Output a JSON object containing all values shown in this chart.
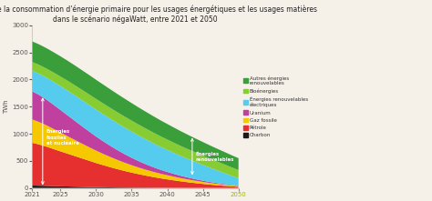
{
  "title": "Évaluation de la consommation d'énergie primaire pour les usages énergétiques et les usages matières\ndans le scénario négaWatt, entre 2021 et 2050",
  "ylabel": "TWh",
  "years": [
    2021,
    2022,
    2023,
    2024,
    2025,
    2026,
    2027,
    2028,
    2029,
    2030,
    2031,
    2032,
    2033,
    2034,
    2035,
    2036,
    2037,
    2038,
    2039,
    2040,
    2041,
    2042,
    2043,
    2044,
    2045,
    2046,
    2047,
    2048,
    2049,
    2050
  ],
  "charbon": [
    45,
    42,
    38,
    34,
    30,
    27,
    24,
    21,
    18,
    15,
    13,
    11,
    9,
    8,
    7,
    6,
    5,
    4,
    3,
    3,
    2,
    2,
    1,
    1,
    1,
    1,
    0,
    0,
    0,
    0
  ],
  "petrole": [
    790,
    760,
    725,
    685,
    645,
    605,
    565,
    525,
    485,
    445,
    408,
    372,
    338,
    306,
    276,
    248,
    222,
    198,
    176,
    156,
    137,
    119,
    103,
    88,
    74,
    61,
    50,
    40,
    30,
    22
  ],
  "gaz_fossile": [
    430,
    415,
    395,
    372,
    348,
    323,
    298,
    274,
    251,
    229,
    208,
    188,
    170,
    153,
    137,
    122,
    109,
    97,
    86,
    76,
    67,
    58,
    51,
    44,
    37,
    31,
    26,
    21,
    16,
    12
  ],
  "uranium": [
    520,
    500,
    475,
    447,
    416,
    385,
    353,
    321,
    290,
    260,
    232,
    206,
    181,
    158,
    137,
    118,
    101,
    86,
    73,
    61,
    51,
    42,
    35,
    28,
    23,
    18,
    14,
    11,
    8,
    5
  ],
  "enr_elec": [
    380,
    390,
    405,
    422,
    440,
    456,
    470,
    481,
    490,
    496,
    499,
    499,
    496,
    491,
    483,
    472,
    459,
    443,
    425,
    406,
    385,
    363,
    340,
    316,
    290,
    263,
    234,
    204,
    172,
    140
  ],
  "bioenergies": [
    160,
    163,
    167,
    172,
    177,
    182,
    186,
    190,
    194,
    197,
    199,
    201,
    202,
    202,
    202,
    201,
    199,
    197,
    194,
    191,
    188,
    184,
    180,
    176,
    172,
    168,
    164,
    160,
    156,
    152
  ],
  "autres_enr": [
    380,
    378,
    376,
    374,
    372,
    369,
    366,
    362,
    358,
    353,
    348,
    342,
    336,
    330,
    323,
    316,
    309,
    302,
    294,
    287,
    279,
    272,
    264,
    257,
    250,
    243,
    236,
    230,
    224,
    218
  ],
  "colors": {
    "charbon": "#1a1a1a",
    "petrole": "#e63030",
    "gaz_fossile": "#f5c800",
    "uranium": "#c040a0",
    "enr_elec": "#55ccee",
    "bioenergies": "#88cc33",
    "autres_enr": "#3a9e3a"
  },
  "legend_labels": [
    "Autres énergies\nrenouvelables",
    "Bioénergies",
    "Énergies renouvelables\nélectriques",
    "Uranium",
    "Gaz fossile",
    "Pétrole",
    "Charbon"
  ],
  "legend_colors": [
    "#3a9e3a",
    "#88cc33",
    "#55ccee",
    "#c040a0",
    "#f5c800",
    "#e63030",
    "#1a1a1a"
  ],
  "annotation1_text": "Énergies\nfossiles\net nucléaire",
  "annotation2_text": "Énergies\nrenouvelables",
  "ylim": [
    0,
    3000
  ],
  "yticks": [
    0,
    500,
    1000,
    1500,
    2000,
    2500,
    3000
  ],
  "xticks": [
    2021,
    2025,
    2030,
    2035,
    2040,
    2045,
    2050
  ],
  "background_color": "#f5f0e8"
}
